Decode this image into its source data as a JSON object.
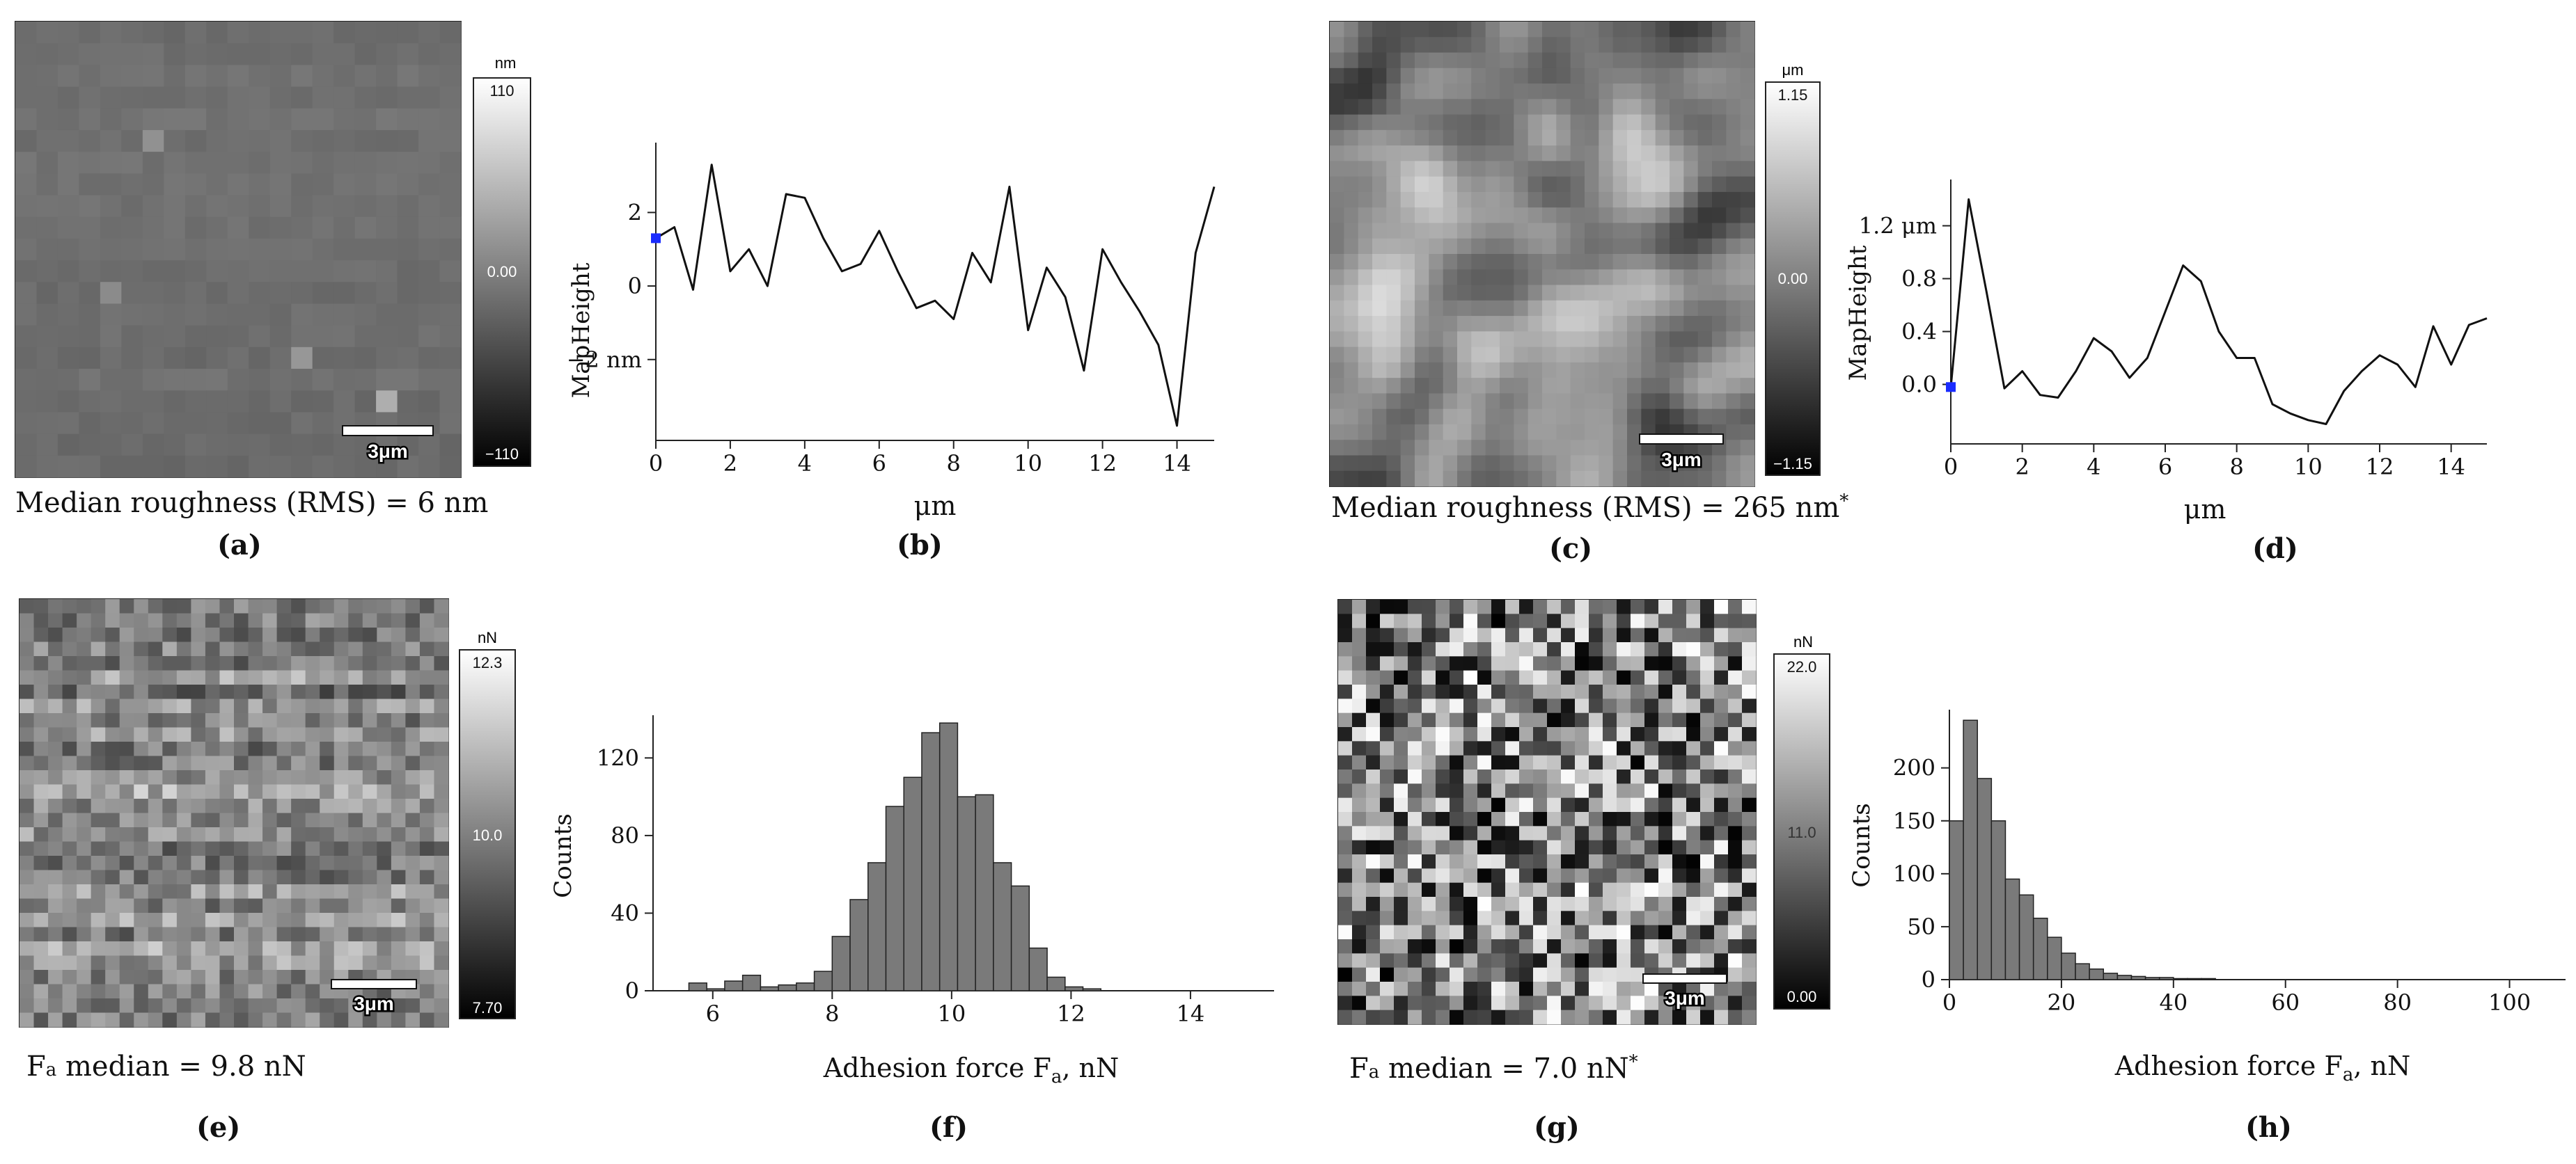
{
  "panels": {
    "a": {
      "tag": "(a)",
      "caption": "Median roughness (RMS) = 6 nm",
      "scalebar": "3μm",
      "colorbar": {
        "unit": "nm",
        "max": "110",
        "mid": "0.00",
        "min": "−110"
      },
      "map": {
        "rows": 21,
        "cols": 21,
        "min": -110,
        "max": 110,
        "mean": -15,
        "spread": 5,
        "row_drift": 4,
        "seed": 3,
        "spots": [
          {
            "r": 5,
            "c": 6,
            "v": 15
          },
          {
            "r": 12,
            "c": 4,
            "v": 10
          },
          {
            "r": 15,
            "c": 13,
            "v": 20
          },
          {
            "r": 17,
            "c": 17,
            "v": 40
          }
        ]
      }
    },
    "c": {
      "tag": "(c)",
      "caption_main": "Median roughness (RMS) = 265 nm",
      "caption_sup": "*",
      "scalebar": "3μm",
      "colorbar": {
        "unit": "μm",
        "max": "1.15",
        "mid": "0.00",
        "min": "−1.15"
      },
      "map": {
        "rows": 30,
        "cols": 30,
        "min": -1.15,
        "max": 1.15,
        "seed": 11,
        "smooth": true
      }
    },
    "e": {
      "tag": "(e)",
      "caption_main": "F",
      "caption_sub": "a",
      "caption_rest": " median = 9.8 nN",
      "scalebar": "3μm",
      "colorbar": {
        "unit": "nN",
        "max": "12.3",
        "mid": "10.0",
        "min": "7.70"
      },
      "map": {
        "rows": 30,
        "cols": 30,
        "min": 7.7,
        "max": 12.3,
        "mean": 10.2,
        "spread": 0.8,
        "row_drift": 0.6,
        "seed": 21
      }
    },
    "g": {
      "tag": "(g)",
      "caption_main": "F",
      "caption_sub": "a",
      "caption_rest": " median = 7.0 nN",
      "caption_sup": "*",
      "scalebar": "3μm",
      "colorbar": {
        "unit": "nN",
        "max": "22.0",
        "mid": "11.0",
        "min": "0.00"
      },
      "map": {
        "rows": 30,
        "cols": 30,
        "min": 0,
        "max": 22,
        "seed": 37,
        "uniform": true
      }
    },
    "b": {
      "tag": "(b)"
    },
    "d": {
      "tag": "(d)"
    },
    "f": {
      "tag": "(f)"
    },
    "h": {
      "tag": "(h)"
    }
  },
  "chart_data": [
    {
      "panel": "b",
      "type": "line",
      "ylabel": "MapHeight",
      "xlabel": "μm",
      "xlim": [
        0,
        15
      ],
      "ylim": [
        -4.2,
        3.9
      ],
      "xticks": [
        0,
        2,
        4,
        6,
        8,
        10,
        12,
        14
      ],
      "yticks": [
        {
          "v": 2,
          "label": "2"
        },
        {
          "v": 0,
          "label": "0"
        },
        {
          "v": -2,
          "label": "−2 nm"
        }
      ],
      "marker": {
        "x": 0,
        "y": 1.3
      },
      "x": [
        0,
        0.5,
        1,
        1.5,
        2,
        2.5,
        3,
        3.5,
        4,
        4.5,
        5,
        5.5,
        6,
        6.5,
        7,
        7.5,
        8,
        8.5,
        9,
        9.5,
        10,
        10.5,
        11,
        11.5,
        12,
        12.5,
        13,
        13.5,
        14,
        14.5,
        15
      ],
      "y": [
        1.3,
        1.6,
        -0.1,
        3.3,
        0.4,
        1.0,
        0.0,
        2.5,
        2.4,
        1.3,
        0.4,
        0.6,
        1.5,
        0.4,
        -0.6,
        -0.4,
        -0.9,
        0.9,
        0.1,
        2.7,
        -1.2,
        0.5,
        -0.3,
        -2.3,
        1.0,
        0.1,
        -0.7,
        -1.6,
        -3.8,
        0.9,
        2.7
      ]
    },
    {
      "panel": "d",
      "type": "line",
      "ylabel": "MapHeight",
      "xlabel": "μm",
      "xlim": [
        0,
        15
      ],
      "ylim": [
        -0.45,
        1.55
      ],
      "xticks": [
        0,
        2,
        4,
        6,
        8,
        10,
        12,
        14
      ],
      "yticks": [
        {
          "v": 1.2,
          "label": "1.2 μm"
        },
        {
          "v": 0.8,
          "label": "0.8"
        },
        {
          "v": 0.4,
          "label": "0.4"
        },
        {
          "v": 0.0,
          "label": "0.0"
        }
      ],
      "marker": {
        "x": 0,
        "y": -0.02
      },
      "x": [
        0,
        0.5,
        1,
        1.5,
        2,
        2.5,
        3,
        3.5,
        4,
        4.5,
        5,
        5.5,
        6,
        6.5,
        7,
        7.5,
        8,
        8.5,
        9,
        9.5,
        10,
        10.5,
        11,
        11.5,
        12,
        12.5,
        13,
        13.5,
        14,
        14.5,
        15
      ],
      "y": [
        -0.02,
        1.4,
        0.7,
        -0.03,
        0.1,
        -0.08,
        -0.1,
        0.1,
        0.35,
        0.25,
        0.05,
        0.2,
        0.55,
        0.9,
        0.78,
        0.4,
        0.2,
        0.2,
        -0.15,
        -0.22,
        -0.27,
        -0.3,
        -0.05,
        0.1,
        0.22,
        0.15,
        -0.02,
        0.44,
        0.15,
        0.45,
        0.5
      ]
    },
    {
      "panel": "f",
      "type": "bar",
      "ylabel": "Counts",
      "xlabel_main": "Adhesion force F",
      "xlabel_sub": "a",
      "xlabel_rest": ", nN",
      "xlim": [
        5,
        15.4
      ],
      "ylim": [
        0,
        142
      ],
      "xticks": [
        6,
        8,
        10,
        12,
        14
      ],
      "yticks": [
        0,
        40,
        80,
        120
      ],
      "bin_width": 0.3,
      "bins": [
        5.0,
        5.3,
        5.6,
        5.9,
        6.2,
        6.5,
        6.8,
        7.1,
        7.4,
        7.7,
        8.0,
        8.3,
        8.6,
        8.9,
        9.2,
        9.5,
        9.8,
        10.1,
        10.4,
        10.7,
        11.0,
        11.3,
        11.6,
        11.9,
        12.2,
        12.5,
        12.8,
        13.1
      ],
      "values": [
        0,
        0,
        4,
        1,
        5,
        8,
        2,
        3,
        4,
        10,
        28,
        47,
        66,
        95,
        110,
        133,
        138,
        100,
        101,
        66,
        54,
        22,
        7,
        2,
        1,
        0,
        0,
        0
      ]
    },
    {
      "panel": "h",
      "type": "bar",
      "ylabel": "Counts",
      "xlabel_main": "Adhesion force F",
      "xlabel_sub": "a",
      "xlabel_rest": ", nN",
      "xlim": [
        0,
        110
      ],
      "ylim": [
        0,
        255
      ],
      "xticks": [
        0,
        20,
        40,
        60,
        80,
        100
      ],
      "yticks": [
        0,
        50,
        100,
        150,
        200
      ],
      "bin_width": 2.5,
      "bins": [
        0,
        2.5,
        5,
        7.5,
        10,
        12.5,
        15,
        17.5,
        20,
        22.5,
        25,
        27.5,
        30,
        32.5,
        35,
        37.5,
        40,
        42.5,
        45,
        47.5,
        50,
        52.5
      ],
      "values": [
        150,
        245,
        190,
        150,
        95,
        80,
        58,
        40,
        25,
        15,
        10,
        6,
        4,
        3,
        2,
        2,
        1,
        1,
        1,
        0,
        0,
        0
      ]
    }
  ]
}
